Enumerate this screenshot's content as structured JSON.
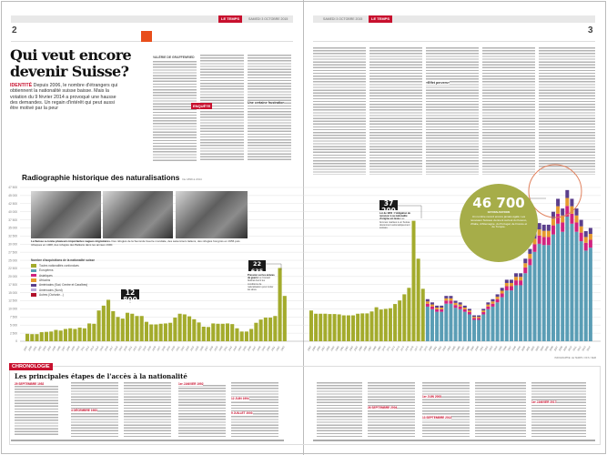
{
  "masthead": {
    "left": {
      "brand": "LE TEMPS",
      "date": "SAMEDI 3 OCTOBRE 2015",
      "page": "2"
    },
    "right": {
      "brand": "LE TEMPS",
      "date": "SAMEDI 3 OCTOBRE 2015",
      "page": "3"
    }
  },
  "article": {
    "headline": "Qui veut encore devenir Suisse?",
    "kicker": "IDENTITÉ",
    "intro": "Depuis 2006, le nombre d'étrangers qui obtiennent la nationalité suisse baisse. Mais la votation du 9 février 2014 a provoqué une hausse des demandes. Un regain d'intérêt qui peut aussi être motivé par la peur",
    "byline": "VALÉRIE DE GRAFFENRIED",
    "badge": "ENQUÊTE",
    "subhead": "Une certaine frustration",
    "right_subhead": "«Effet pervers»"
  },
  "chart_data": {
    "type": "bar",
    "title": "Radiographie historique des naturalisations",
    "subtitle": "De 1899 à 2014",
    "ylabel": "",
    "ylim": [
      0,
      47500
    ],
    "yticks": [
      0,
      2500,
      5000,
      7500,
      10000,
      12500,
      15000,
      17500,
      20000,
      22500,
      25000,
      27500,
      30000,
      32500,
      35000,
      37500,
      40000,
      42500,
      45000,
      47500
    ],
    "ytick_labels": [
      "0",
      "2 500",
      "5 000",
      "7 500",
      "10 000",
      "12 500",
      "15 000",
      "17 500",
      "20 000",
      "22 500",
      "25 000",
      "27 500",
      "30 000",
      "32 500",
      "35 000",
      "37 500",
      "40 000",
      "42 500",
      "45 000",
      "47 500"
    ],
    "grid": true,
    "start_year": 1899,
    "legend_title": "Nombre d'acquisitions de la nationalité suisse",
    "legend": [
      {
        "name": "Toutes nationalités confondues",
        "color": "#a3ab2c"
      },
      {
        "name": "Européens",
        "color": "#5a9db5"
      },
      {
        "name": "Asiatiques",
        "color": "#d1237f"
      },
      {
        "name": "Africains",
        "color": "#e69a2e"
      },
      {
        "name": "Américains (Sud, Centre et Caraïbes)",
        "color": "#5b3f8c"
      },
      {
        "name": "Américains (Nord)",
        "color": "#b7a8d6"
      },
      {
        "name": "Autres (Océanie...)",
        "color": "#b0102a"
      }
    ],
    "totals_page_left": [
      2300,
      2200,
      2200,
      2800,
      2900,
      3000,
      3500,
      3300,
      3800,
      4000,
      3800,
      4200,
      4000,
      5500,
      5400,
      9500,
      11000,
      12800,
      9300,
      7500,
      7000,
      8800,
      8500,
      7800,
      7800,
      6000,
      5200,
      5200,
      5400,
      5500,
      5700,
      7300,
      8500,
      8300,
      7700,
      6800,
      5800,
      4500,
      4400,
      5500,
      5400,
      5400,
      5500,
      5300,
      4000,
      3000,
      3000,
      3800,
      5700,
      6700,
      7300,
      7300,
      7800,
      22635,
      14000
    ],
    "totals_page_right_all_nationalities": [
      9500,
      8500,
      8500,
      8500,
      8400,
      8400,
      8300,
      8000,
      8000,
      8000,
      8500,
      8600,
      8600,
      9200,
      10500,
      9800,
      10000,
      10200,
      11500,
      12600,
      14500,
      16500,
      37200,
      25500,
      16200
    ],
    "stacked_by_region": {
      "europeens": [
        10700,
        9900,
        9100,
        9100,
        11600,
        11600,
        10300,
        9900,
        9100,
        8300,
        6600,
        6600,
        8300,
        9900,
        10700,
        12000,
        13600,
        15700,
        15700,
        17300,
        17300,
        21000,
        23500,
        27600,
        30100,
        29700,
        29700,
        33000,
        36300,
        33800,
        38500,
        36300,
        33800,
        30900,
        28000,
        28900
      ],
      "asiatiques": [
        900,
        850,
        750,
        750,
        950,
        950,
        900,
        850,
        750,
        700,
        550,
        550,
        700,
        850,
        900,
        1000,
        1150,
        1300,
        1300,
        1500,
        1500,
        1800,
        2000,
        2350,
        2550,
        2500,
        2500,
        2800,
        3100,
        2900,
        3300,
        3100,
        2900,
        2650,
        2400,
        2450
      ],
      "africains": [
        700,
        600,
        550,
        550,
        700,
        700,
        650,
        600,
        550,
        500,
        400,
        400,
        500,
        600,
        700,
        750,
        850,
        1000,
        1000,
        1100,
        1100,
        1300,
        1500,
        1750,
        1900,
        1900,
        1900,
        2100,
        2300,
        2150,
        2450,
        2300,
        2150,
        1950,
        1800,
        1800
      ],
      "ameriques": [
        700,
        650,
        600,
        600,
        750,
        750,
        650,
        650,
        600,
        500,
        450,
        450,
        500,
        650,
        700,
        750,
        900,
        1000,
        1000,
        1100,
        1100,
        1400,
        1500,
        1800,
        1950,
        1900,
        1900,
        2100,
        2300,
        2150,
        2450,
        2300,
        2150,
        2000,
        1800,
        1850
      ]
    },
    "annotations": [
      {
        "value": "12 800",
        "label": "NATURALISATIONS"
      },
      {
        "value": "22 635",
        "label": "NATURALISATIONS",
        "note_title": "Pression sur les années de guerre",
        "note": "Le Conseil fédéral durcit les conditions de naturalisation pour éviter les abus."
      },
      {
        "value": "37 200",
        "label": "NATURALISATIONS",
        "note_title": "Loi de 1952 : l'obligation de renoncer à sa nationalité d'origine est levée",
        "note": "Les femmes mariées à un Suisse deviennent automatiquement suisses."
      },
      {
        "value": "46 700",
        "label": "NATURALISATIONS",
        "note": "Un nombre record encore jamais égalé. Les nouveaux Suisses viennent surtout du Kosovo, d'Italie, d'Allemagne, du Portugal, de France et de Turquie."
      }
    ],
    "source": "INFOGRAPHIE: LE TEMPS / OFS / SEM"
  },
  "caption": {
    "lead": "La Suisse a connu plusieurs importantes vagues migratoires.",
    "text": "Des réfugiés de la Seconde Guerre mondiale, des saisonniers italiens, des réfugiés hongrois en 1956 puis tchèques en 1968, des réfugiés des Balkans dans les années 1990."
  },
  "chronology": {
    "tag": "CHRONOLOGIE",
    "title": "Les principales étapes de l'accès à la nationalité",
    "events": [
      {
        "date": "29 SEPTEMBRE 1952"
      },
      {
        "date": "4 DÉCEMBRE 1983"
      },
      {
        "date": "1er JANVIER 1992"
      },
      {
        "date": "12 JUIN 1994"
      },
      {
        "date": "9 JUILLET 2003"
      },
      {
        "date": "26 SEPTEMBRE 2004"
      },
      {
        "date": "1er JUIN 2008"
      },
      {
        "date": "13 SEPTEMBRE 2013"
      },
      {
        "date": "1er JANVIER 2017"
      }
    ]
  }
}
